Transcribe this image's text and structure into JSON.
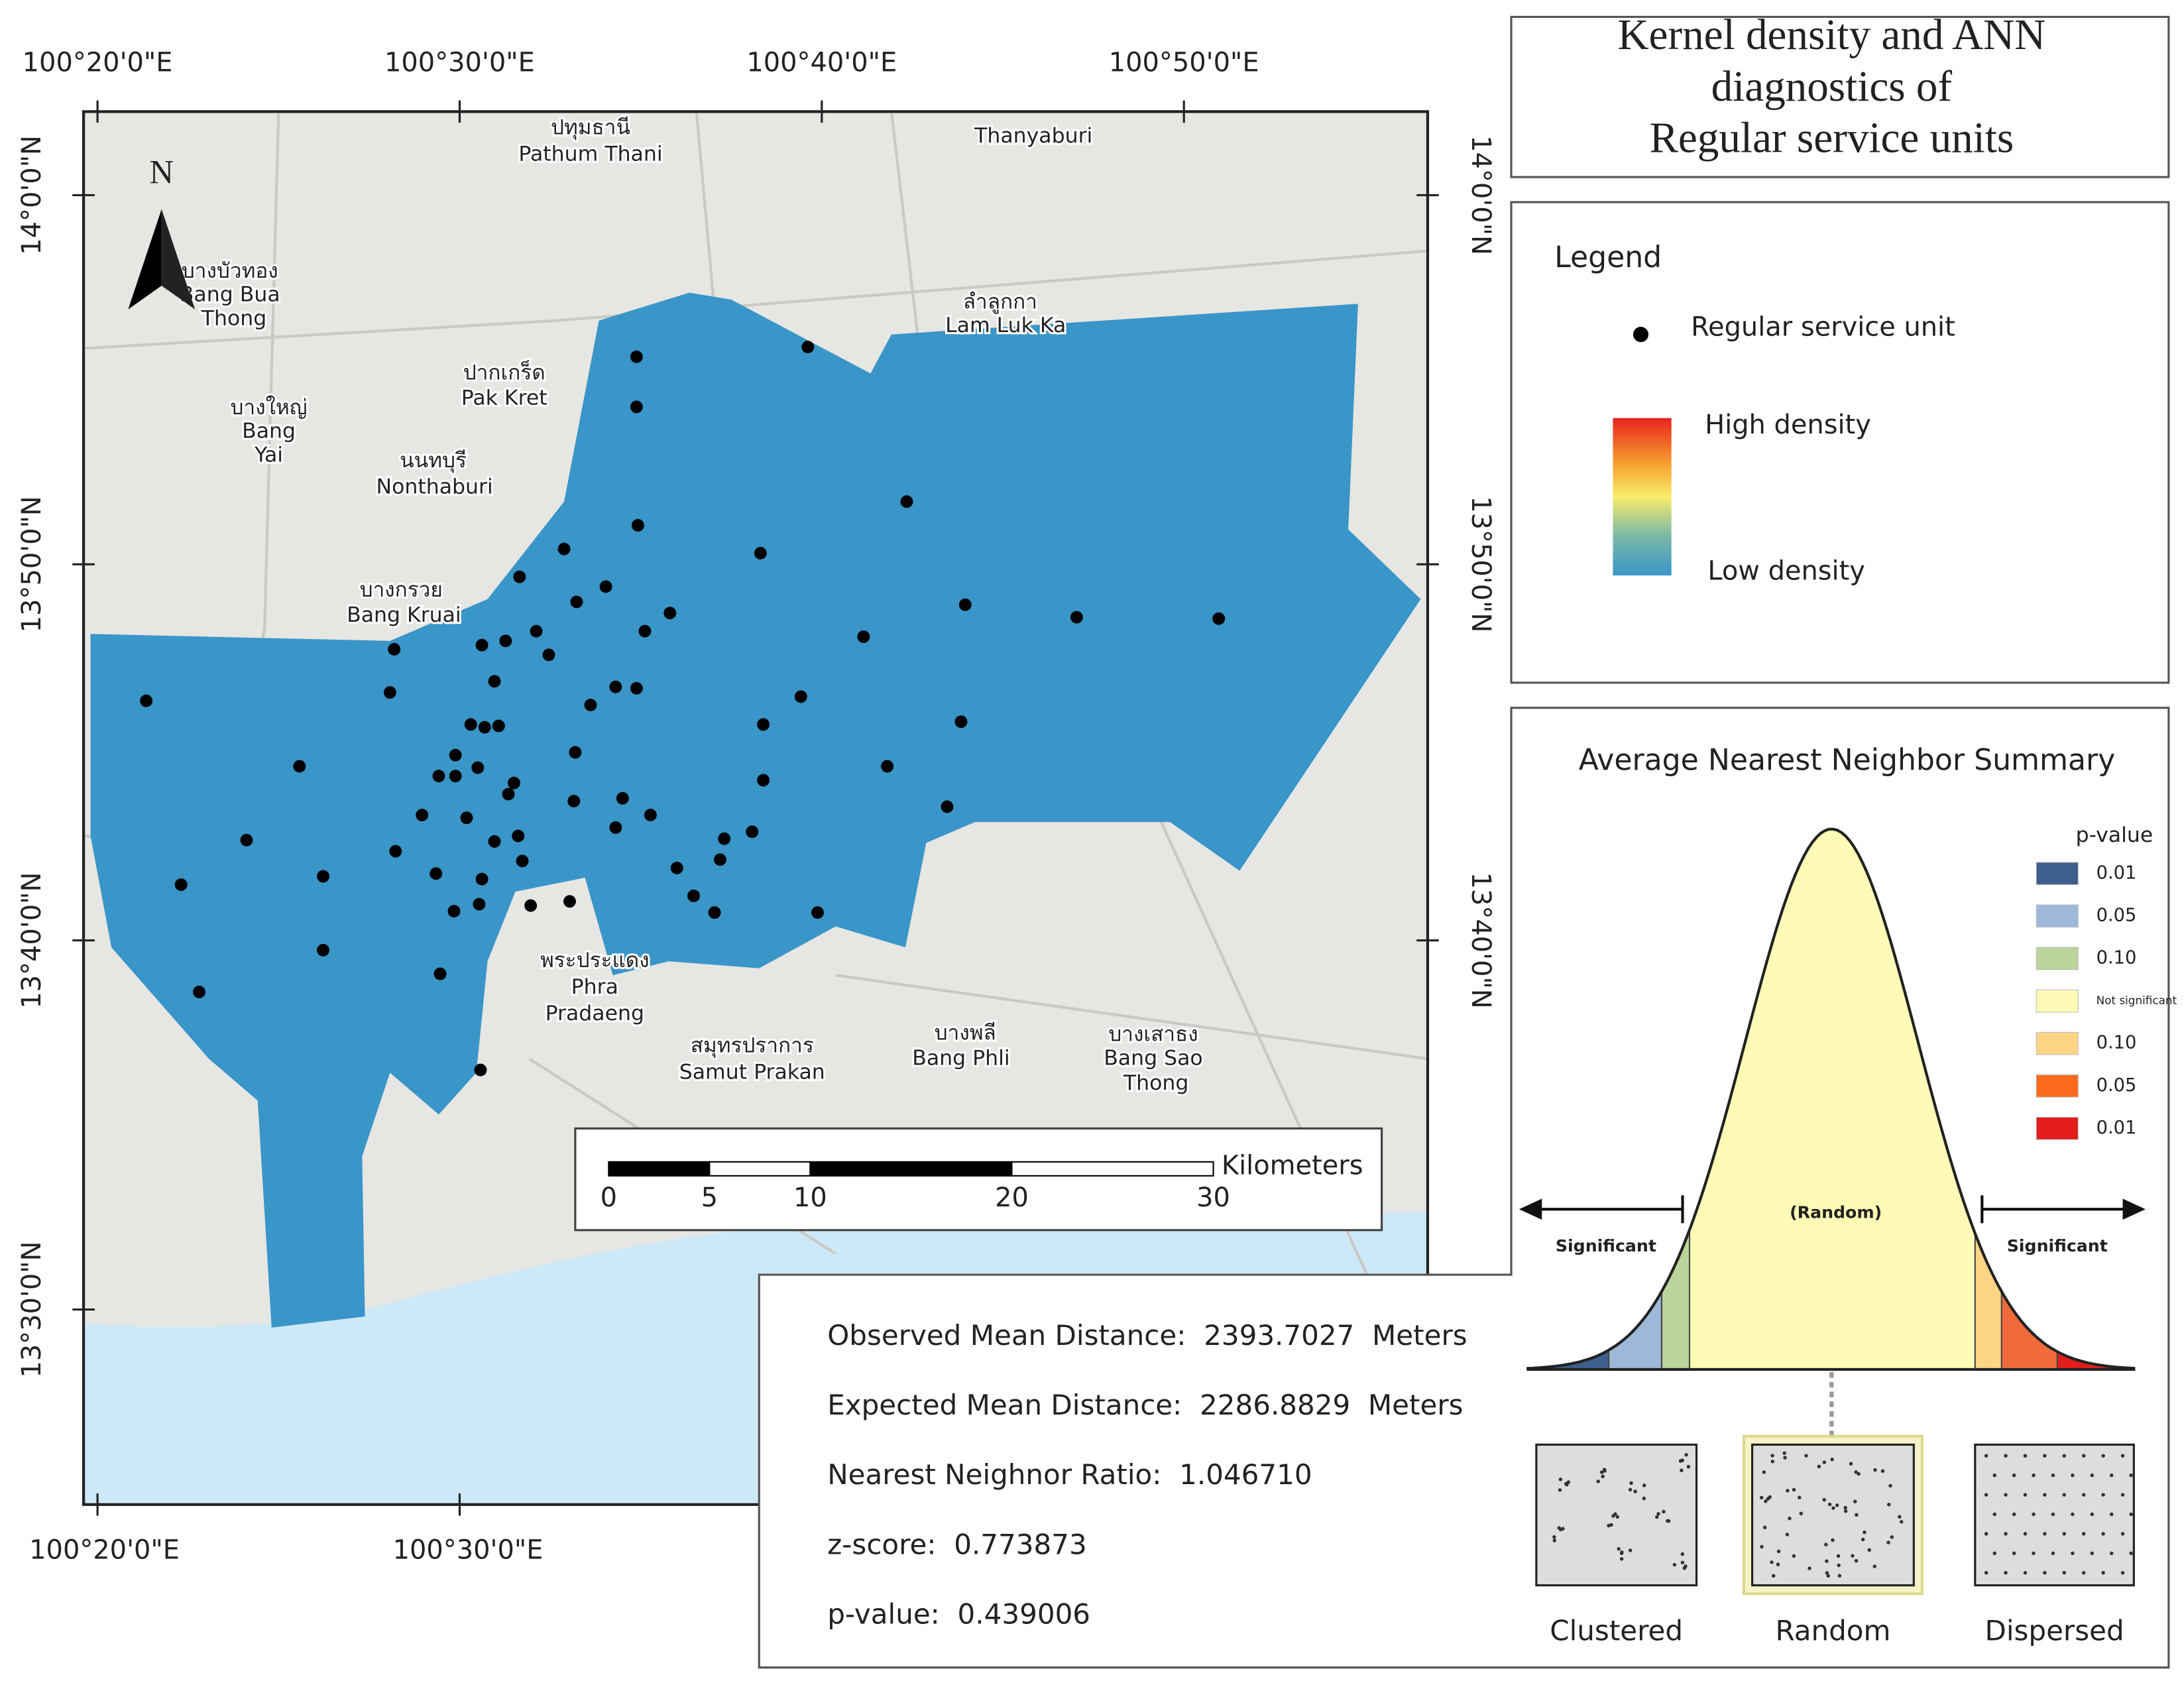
{
  "title": [
    "Kernel density and ANN",
    "diagnostics of",
    "Regular service units"
  ],
  "map": {
    "lon_labels_top": [
      "100°20'0\"E",
      "100°30'0\"E",
      "100°40'0\"E",
      "100°50'0\"E"
    ],
    "lon_labels_bottom": [
      "100°20'0\"E",
      "100°30'0\"E"
    ],
    "lat_labels_left": [
      "14°0'0\"N",
      "13°50'0\"N",
      "13°40'0\"N",
      "13°30'0\"N"
    ],
    "lat_labels_right": [
      "14°0'0\"N",
      "13°50'0\"N",
      "13°40'0\"N"
    ],
    "north": "N",
    "places": [
      "ปทุมธานี",
      "Pathum Thani",
      "Thanyaburi",
      "ลำลูกกา",
      "Lam Luk Ka",
      "บางบัวทอง",
      "Bang Bua",
      "Thong",
      "ปากเกร็ด",
      "Pak Kret",
      "บางใหญ่",
      "Bang",
      "Yai",
      "นนทบุรี",
      "Nonthaburi",
      "บางกรวย",
      "Bang Kruai",
      "พระประแดง",
      "Phra",
      "Pradaeng",
      "สมุทรปราการ",
      "Samut Prakan",
      "บางพลี",
      "Bang Phli",
      "บางเสาธง",
      "Bang Sao",
      "Thong"
    ],
    "scale_bar": {
      "unit": "Kilometers",
      "ticks": [
        0,
        5,
        10,
        20,
        30
      ]
    }
  },
  "legend": {
    "title": "Legend",
    "point": "Regular service unit",
    "high": "High density",
    "low": "Low density"
  },
  "ann": {
    "title": "Average Nearest Neighbor Summary",
    "pvalue_title": "p-value",
    "pvalue_levels": [
      "0.01",
      "0.05",
      "0.10",
      "Not significant",
      "0.10",
      "0.05",
      "0.01"
    ],
    "significant_left": "Significant",
    "random": "(Random)",
    "significant_right": "Significant",
    "patterns": [
      "Clustered",
      "Random",
      "Dispersed"
    ]
  },
  "stats": [
    "Observed Mean Distance:  2393.7027  Meters",
    "Expected Mean Distance:  2286.8829  Meters",
    "Nearest Neighnor Ratio:  1.046710",
    "z-score:  0.773873",
    "p-value:  0.439006"
  ]
}
